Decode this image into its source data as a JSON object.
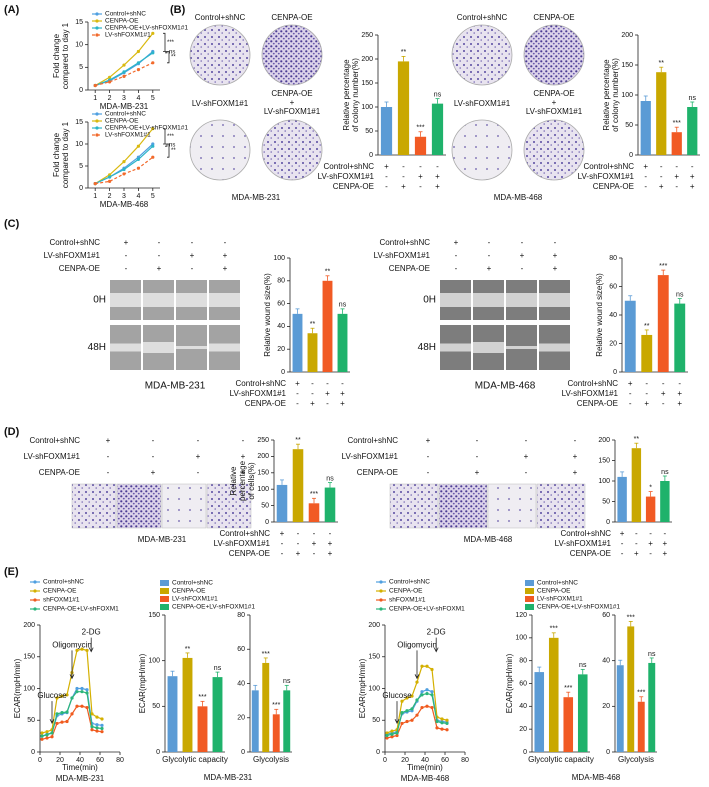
{
  "figure": {
    "panels": [
      "(A)",
      "(B)",
      "(C)",
      "(D)",
      "(E)"
    ],
    "colony_images": [
      {
        "labels": [
          "Control+shNC",
          "CENPA-OE",
          "LV-shFOXM1#1"
        ],
        "combo_label": [
          "CENPA-OE",
          "+",
          "LV-shFOXM1#1"
        ],
        "caption": "MDA-MB-231"
      },
      {
        "labels": [
          "Control+shNC",
          "CENPA-OE",
          "LV-shFOXM1#1"
        ],
        "combo_label": [
          "CENPA-OE",
          "+",
          "LV-shFOXM1#1"
        ],
        "caption": "MDA-MB-468"
      }
    ],
    "wound_images": [
      {
        "rows": [
          "0H",
          "48H"
        ],
        "caption": "MDA-MB-231"
      },
      {
        "rows": [
          "0H",
          "48H"
        ],
        "caption": "MDA-MB-468"
      }
    ],
    "transwell_images": [
      {
        "caption": "MDA-MB-231"
      },
      {
        "caption": "MDA-MB-468"
      }
    ]
  },
  "chart_data": [
    {
      "type": "line",
      "ylabel": [
        "Fold change",
        "compared to day 1"
      ],
      "caption": "MDA-MB-231",
      "x": [
        1,
        2,
        3,
        4,
        5
      ],
      "xlim": [
        0.5,
        5.5
      ],
      "xticks": [
        1,
        2,
        3,
        4,
        5
      ],
      "ylim": [
        0,
        15
      ],
      "yticks": [
        0,
        5,
        10,
        15
      ],
      "series": [
        {
          "name": "Control+shNC",
          "color": "#4f9fe0",
          "values": [
            1,
            2,
            3.8,
            5.8,
            8.5
          ]
        },
        {
          "name": "CENPA-OE",
          "color": "#d9b90f",
          "values": [
            1,
            2.8,
            5.5,
            8.5,
            12.5
          ]
        },
        {
          "name": "CENPA-OE+LV-shFOXM1#1",
          "color": "#2bb5c9",
          "values": [
            1,
            2.2,
            4,
            6,
            8.2
          ]
        },
        {
          "name": "LV-shFOXM1#1",
          "color": "#f26a2c",
          "dashed": true,
          "values": [
            1,
            1.8,
            3,
            4.5,
            6
          ]
        }
      ],
      "annotations": [
        "***",
        "ns",
        "**"
      ]
    },
    {
      "type": "line",
      "ylabel": [
        "Fold change",
        "compared to day 1"
      ],
      "caption": "MDA-MB-468",
      "x": [
        1,
        2,
        3,
        4,
        5
      ],
      "xlim": [
        0.5,
        5.5
      ],
      "xticks": [
        1,
        2,
        3,
        4,
        5
      ],
      "ylim": [
        0,
        15
      ],
      "yticks": [
        0,
        5,
        10,
        15
      ],
      "series": [
        {
          "name": "Control+shNC",
          "color": "#4f9fe0",
          "values": [
            1,
            2.5,
            4.5,
            7,
            10
          ]
        },
        {
          "name": "CENPA-OE",
          "color": "#d9b90f",
          "values": [
            1,
            3,
            6,
            9.5,
            13.5
          ]
        },
        {
          "name": "CENPA-OE+LV-shFOXM1#1",
          "color": "#2bb5c9",
          "values": [
            1,
            2.5,
            4.2,
            6.5,
            9.5
          ]
        },
        {
          "name": "LV-shFOXM1#1",
          "color": "#f26a2c",
          "dashed": true,
          "values": [
            1,
            1.5,
            3.2,
            4.5,
            7
          ]
        }
      ],
      "annotations": [
        "***",
        "ns",
        "**"
      ]
    },
    {
      "type": "bar",
      "ylabel": [
        "Relative percentage",
        "of colony number(%)"
      ],
      "ylim": [
        0,
        250
      ],
      "yticks": [
        0,
        50,
        100,
        150,
        200,
        250
      ],
      "values": [
        100,
        195,
        38,
        107
      ],
      "colors": [
        "#5b9bd5",
        "#c9a800",
        "#f15a24",
        "#1fb26b"
      ],
      "annotations": [
        null,
        "**",
        "***",
        "ns"
      ],
      "conditions": [
        {
          "name": "Control+shNC",
          "signs": [
            "+",
            "-",
            "-",
            "-"
          ]
        },
        {
          "name": "LV-shFOXM1#1",
          "signs": [
            "-",
            "-",
            "+",
            "+"
          ]
        },
        {
          "name": "CENPA-OE",
          "signs": [
            "-",
            "+",
            "-",
            "+"
          ]
        }
      ]
    },
    {
      "type": "bar",
      "ylabel": [
        "Relative percentage",
        "of colony number(%)"
      ],
      "ylim": [
        0,
        200
      ],
      "yticks": [
        0,
        50,
        100,
        150,
        200
      ],
      "values": [
        90,
        138,
        38,
        80
      ],
      "colors": [
        "#5b9bd5",
        "#c9a800",
        "#f15a24",
        "#1fb26b"
      ],
      "annotations": [
        null,
        "**",
        "***",
        "ns"
      ],
      "conditions": [
        {
          "name": "Control+shNC",
          "signs": [
            "+",
            "-",
            "-",
            "-"
          ]
        },
        {
          "name": "LV-shFOXM1#1",
          "signs": [
            "-",
            "-",
            "+",
            "+"
          ]
        },
        {
          "name": "CENPA-OE",
          "signs": [
            "-",
            "+",
            "-",
            "+"
          ]
        }
      ]
    },
    {
      "type": "bar",
      "ylabel": [
        "Relative wound size(%)"
      ],
      "ylim": [
        0,
        100
      ],
      "yticks": [
        0,
        20,
        40,
        60,
        80,
        100
      ],
      "values": [
        51,
        34,
        80,
        51
      ],
      "colors": [
        "#5b9bd5",
        "#c9a800",
        "#f15a24",
        "#1fb26b"
      ],
      "annotations": [
        null,
        "**",
        "**",
        "ns"
      ],
      "conditions": [
        {
          "name": "Control+shNC",
          "signs": [
            "+",
            "-",
            "-",
            "-"
          ]
        },
        {
          "name": "LV-shFOXM1#1",
          "signs": [
            "-",
            "-",
            "+",
            "+"
          ]
        },
        {
          "name": "CENPA-OE",
          "signs": [
            "-",
            "+",
            "-",
            "+"
          ]
        }
      ]
    },
    {
      "type": "bar",
      "ylabel": [
        "Relative wound size(%)"
      ],
      "ylim": [
        0,
        80
      ],
      "yticks": [
        0,
        20,
        40,
        60,
        80
      ],
      "values": [
        50,
        26,
        68,
        48
      ],
      "colors": [
        "#5b9bd5",
        "#c9a800",
        "#f15a24",
        "#1fb26b"
      ],
      "annotations": [
        null,
        "**",
        "***",
        "ns"
      ],
      "conditions": [
        {
          "name": "Control+shNC",
          "signs": [
            "+",
            "-",
            "-",
            "-"
          ]
        },
        {
          "name": "LV-shFOXM1#1",
          "signs": [
            "-",
            "-",
            "+",
            "+"
          ]
        },
        {
          "name": "CENPA-OE",
          "signs": [
            "-",
            "+",
            "-",
            "+"
          ]
        }
      ]
    },
    {
      "type": "bar",
      "ylabel": [
        "Relative",
        "percentage",
        "of cells(%)"
      ],
      "ylim": [
        0,
        250
      ],
      "yticks": [
        0,
        50,
        100,
        150,
        200,
        250
      ],
      "values": [
        113,
        222,
        57,
        105
      ],
      "colors": [
        "#5b9bd5",
        "#c9a800",
        "#f15a24",
        "#1fb26b"
      ],
      "annotations": [
        null,
        "**",
        "***",
        "ns"
      ],
      "conditions": [
        {
          "name": "Control+shNC",
          "signs": [
            "+",
            "-",
            "-",
            "-"
          ]
        },
        {
          "name": "LV-shFOXM1#1",
          "signs": [
            "-",
            "-",
            "+",
            "+"
          ]
        },
        {
          "name": "CENPA-OE",
          "signs": [
            "-",
            "+",
            "-",
            "+"
          ]
        }
      ]
    },
    {
      "type": "bar",
      "ylim": [
        0,
        200
      ],
      "yticks": [
        0,
        50,
        100,
        150,
        200
      ],
      "values": [
        110,
        180,
        62,
        100
      ],
      "colors": [
        "#5b9bd5",
        "#c9a800",
        "#f15a24",
        "#1fb26b"
      ],
      "annotations": [
        null,
        "**",
        "*",
        "ns"
      ],
      "conditions": [
        {
          "name": "Control+shNC",
          "signs": [
            "+",
            "-",
            "-",
            "-"
          ]
        },
        {
          "name": "LV-shFOXM1#1",
          "signs": [
            "-",
            "-",
            "+",
            "+"
          ]
        },
        {
          "name": "CENPA-OE",
          "signs": [
            "-",
            "+",
            "-",
            "+"
          ]
        }
      ]
    },
    {
      "type": "line",
      "ylabel": [
        "ECAR(mpH/min)"
      ],
      "xlabel": "Time(min)",
      "caption": "MDA-MB-231",
      "x": [
        2,
        7,
        12,
        17,
        22,
        27,
        32,
        37,
        42,
        47,
        52,
        57,
        62
      ],
      "xlim": [
        0,
        80
      ],
      "xticks": [
        0,
        20,
        40,
        60,
        80
      ],
      "ylim": [
        0,
        200
      ],
      "yticks": [
        0,
        50,
        100,
        150,
        200
      ],
      "series": [
        {
          "name": "Control+shNC",
          "color": "#4f9fe0",
          "values": [
            25,
            28,
            30,
            57,
            60,
            62,
            85,
            100,
            100,
            98,
            45,
            43,
            42
          ]
        },
        {
          "name": "CENPA-OE",
          "color": "#d4b000",
          "values": [
            30,
            32,
            35,
            85,
            88,
            90,
            125,
            160,
            162,
            160,
            60,
            55,
            52
          ]
        },
        {
          "name": "shFOXM1#1",
          "color": "#f05a1e",
          "values": [
            20,
            22,
            24,
            45,
            47,
            48,
            60,
            72,
            72,
            70,
            35,
            33,
            32
          ]
        },
        {
          "name": "CENPA-OE+LV-shFOXM1",
          "color": "#2bb57a",
          "values": [
            25,
            27,
            30,
            60,
            62,
            63,
            85,
            95,
            95,
            93,
            40,
            38,
            37
          ]
        }
      ],
      "annotations": [
        "Glucose",
        "Oligomycin",
        "2-DG"
      ]
    },
    {
      "type": "bar",
      "ylabel": [
        "ECAR(mpH/min)"
      ],
      "xlabel": "Glycolytic capacity",
      "caption": "MDA-MB-231",
      "ylim": [
        0,
        150
      ],
      "yticks": [
        0,
        50,
        100,
        150
      ],
      "categories": [
        "Control+shNC",
        "CENPA-OE",
        "LV-shFOXM1#1",
        "CENPA-OE+LV-shFOXM1#1"
      ],
      "values": [
        83,
        103,
        50,
        82
      ],
      "colors": [
        "#5b9bd5",
        "#c9a800",
        "#f15a24",
        "#1fb26b"
      ],
      "annotations": [
        null,
        "**",
        "***",
        "ns"
      ]
    },
    {
      "type": "bar",
      "xlabel": "Glycolysis",
      "ylim": [
        0,
        80
      ],
      "yticks": [
        0,
        20,
        40,
        60,
        80
      ],
      "values": [
        36,
        52,
        22,
        36
      ],
      "colors": [
        "#5b9bd5",
        "#c9a800",
        "#f15a24",
        "#1fb26b"
      ],
      "annotations": [
        null,
        "***",
        "***",
        "ns"
      ]
    },
    {
      "type": "line",
      "ylabel": [
        "ECAR(mpH/min)"
      ],
      "xlabel": "Time(min)",
      "caption": "MDA-MB-468",
      "x": [
        2,
        7,
        12,
        17,
        22,
        27,
        32,
        37,
        42,
        47,
        52,
        57,
        62
      ],
      "xlim": [
        0,
        80
      ],
      "xticks": [
        0,
        20,
        40,
        60,
        80
      ],
      "ylim": [
        0,
        200
      ],
      "yticks": [
        0,
        50,
        100,
        150,
        200
      ],
      "series": [
        {
          "name": "Control+shNC",
          "color": "#4f9fe0",
          "values": [
            28,
            30,
            32,
            60,
            63,
            65,
            80,
            95,
            98,
            95,
            50,
            48,
            47
          ]
        },
        {
          "name": "CENPA-OE",
          "color": "#d4b000",
          "values": [
            30,
            33,
            35,
            80,
            85,
            88,
            110,
            135,
            135,
            130,
            55,
            52,
            50
          ]
        },
        {
          "name": "shFOXM1#1",
          "color": "#f05a1e",
          "values": [
            22,
            24,
            26,
            45,
            48,
            50,
            58,
            70,
            72,
            70,
            38,
            36,
            35
          ]
        },
        {
          "name": "CENPA-OE+LV-shFOXM1",
          "color": "#2bb57a",
          "values": [
            26,
            28,
            30,
            62,
            65,
            68,
            82,
            90,
            92,
            90,
            48,
            46,
            45
          ]
        }
      ],
      "annotations": [
        "Glucose",
        "Oligomycin",
        "2-DG"
      ]
    },
    {
      "type": "bar",
      "ylabel": [
        "ECAR(mpH/min)"
      ],
      "xlabel": "Glycolytic capacity",
      "caption": "MDA-MB-468",
      "ylim": [
        0,
        120
      ],
      "yticks": [
        0,
        20,
        40,
        60,
        80,
        100,
        120
      ],
      "categories": [
        "Control+shNC",
        "CENPA-OE",
        "LV-shFOXM1#1",
        "CENPA-OE+LV-shFOXM1#1"
      ],
      "values": [
        70,
        100,
        48,
        68
      ],
      "colors": [
        "#5b9bd5",
        "#c9a800",
        "#f15a24",
        "#1fb26b"
      ],
      "annotations": [
        null,
        "***",
        "***",
        "ns"
      ]
    },
    {
      "type": "bar",
      "xlabel": "Glycolysis",
      "ylim": [
        0,
        60
      ],
      "yticks": [
        0,
        20,
        40,
        60
      ],
      "values": [
        38,
        55,
        22,
        39
      ],
      "colors": [
        "#5b9bd5",
        "#c9a800",
        "#f15a24",
        "#1fb26b"
      ],
      "annotations": [
        null,
        "***",
        "***",
        "ns"
      ]
    }
  ]
}
